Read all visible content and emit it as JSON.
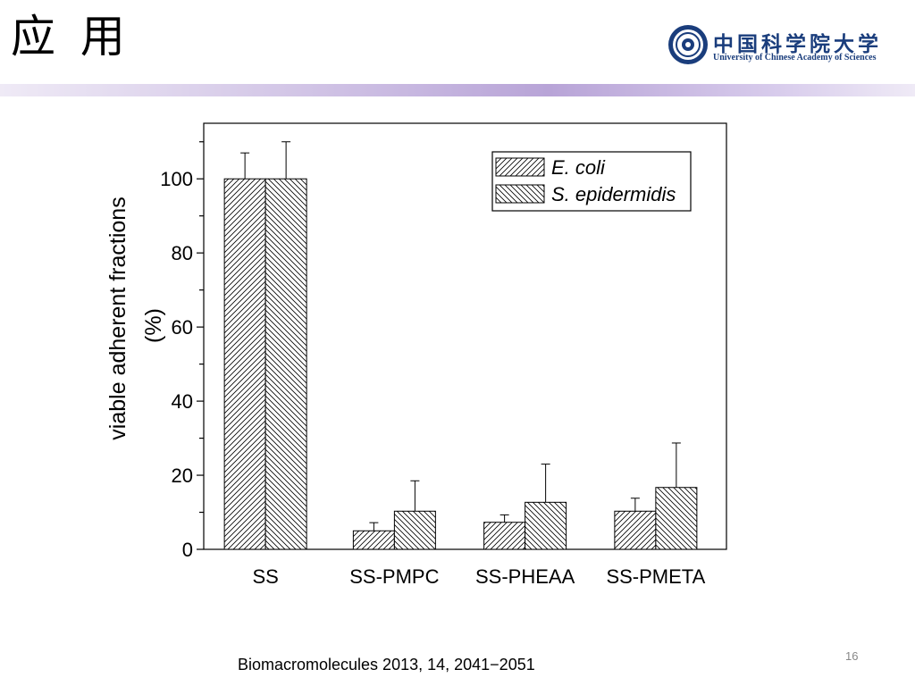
{
  "slide": {
    "title": "应 用",
    "page_number": "16",
    "citation": "Biomacromolecules 2013, 14, 2041−2051"
  },
  "logo": {
    "name_cn": "中国科学院大学",
    "name_en": "University of Chinese Academy of Sciences",
    "color": "#1a3d7c"
  },
  "band_colors": [
    "#efeaf6",
    "#b8a4d7"
  ],
  "chart_data": {
    "type": "bar",
    "title": "",
    "xlabel": "",
    "ylabel": "viable adherent fractions",
    "ylabel_unit": "(%)",
    "ylim": [
      0,
      115
    ],
    "yticks": [
      0,
      20,
      40,
      60,
      80,
      100
    ],
    "categories": [
      "SS",
      "SS-PMPC",
      "SS-PHEAA",
      "SS-PMETA"
    ],
    "series": [
      {
        "name": "E. coli",
        "values": [
          100,
          5,
          7.3,
          10.3
        ],
        "errors": [
          7,
          2.2,
          2,
          3.5
        ],
        "hatch": "forward"
      },
      {
        "name": "S. epidermidis",
        "values": [
          100,
          10.3,
          12.7,
          16.7
        ],
        "errors": [
          10,
          8.2,
          10.3,
          12
        ],
        "hatch": "backward"
      }
    ],
    "legend": "top-right",
    "grid": false
  }
}
